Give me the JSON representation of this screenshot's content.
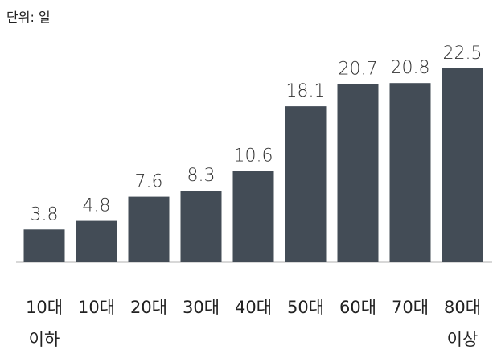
{
  "chart_data": {
    "type": "bar",
    "title": "단위: 일",
    "categories": [
      "10대 이하",
      "10대",
      "20대",
      "30대",
      "40대",
      "50대",
      "60대",
      "70대",
      "80대 이상"
    ],
    "values": [
      3.8,
      4.8,
      7.6,
      8.3,
      10.6,
      18.1,
      20.7,
      20.8,
      22.5
    ],
    "color": "#434c56"
  }
}
